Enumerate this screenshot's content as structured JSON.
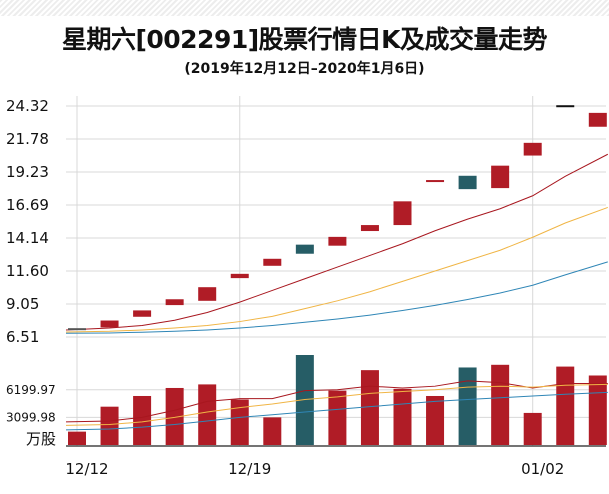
{
  "title": "星期六[002291]股票行情日K及成交量走势",
  "subtitle": "(2019年12月12日–2020年1月6日)",
  "colors": {
    "up": "#b01c26",
    "down": "#265d66",
    "ma5": "#a8171f",
    "ma10": "#f0b545",
    "ma20": "#2f86b6",
    "grid": "#d8d8d8"
  },
  "chart_data": [
    {
      "type": "candlestick",
      "y_ticks": [
        "24.32",
        "21.78",
        "19.23",
        "16.69",
        "14.14",
        "11.60",
        "9.05",
        "6.51"
      ],
      "ylim": [
        6.51,
        24.32
      ],
      "x_ticks": [
        {
          "label": "12/12",
          "index": 0
        },
        {
          "label": "12/19",
          "index": 5
        },
        {
          "label": "01/02",
          "index": 14
        }
      ],
      "candles": [
        {
          "date": "12/12",
          "open": 7.19,
          "close": 7.19,
          "high": 7.19,
          "low": 7.19
        },
        {
          "date": "12/13",
          "open": 7.25,
          "close": 7.78,
          "high": 7.78,
          "low": 7.25
        },
        {
          "date": "12/16",
          "open": 8.07,
          "close": 8.56,
          "high": 8.56,
          "low": 8.07
        },
        {
          "date": "12/17",
          "open": 8.97,
          "close": 9.42,
          "high": 9.42,
          "low": 8.97
        },
        {
          "date": "12/18",
          "open": 9.3,
          "close": 10.35,
          "high": 10.35,
          "low": 9.3
        },
        {
          "date": "12/19",
          "open": 11.05,
          "close": 11.38,
          "high": 11.38,
          "low": 11.05
        },
        {
          "date": "12/20",
          "open": 12.0,
          "close": 12.54,
          "high": 12.54,
          "low": 12.0
        },
        {
          "date": "12/23",
          "open": 13.63,
          "close": 12.93,
          "high": 13.63,
          "low": 12.93
        },
        {
          "date": "12/24",
          "open": 13.55,
          "close": 14.23,
          "high": 14.23,
          "low": 13.55
        },
        {
          "date": "12/25",
          "open": 14.68,
          "close": 15.14,
          "high": 15.14,
          "low": 14.68
        },
        {
          "date": "12/26",
          "open": 15.14,
          "close": 16.97,
          "high": 16.97,
          "low": 15.14
        },
        {
          "date": "12/27",
          "open": 18.49,
          "close": 18.61,
          "high": 18.61,
          "low": 18.49
        },
        {
          "date": "12/30",
          "open": 18.94,
          "close": 17.91,
          "high": 18.94,
          "low": 17.91
        },
        {
          "date": "12/31",
          "open": 17.99,
          "close": 19.72,
          "high": 19.72,
          "low": 17.99
        },
        {
          "date": "01/02",
          "open": 20.5,
          "close": 21.48,
          "high": 21.48,
          "low": 20.5
        },
        {
          "date": "01/03",
          "open": 24.38,
          "close": 24.38,
          "high": 24.38,
          "low": 24.38
        },
        {
          "date": "01/06",
          "open": 22.72,
          "close": 23.79,
          "high": 23.79,
          "low": 22.72
        }
      ],
      "ma": [
        {
          "values": [
            7.05,
            7.2,
            7.4,
            7.8,
            8.4,
            9.2,
            10.1,
            11.0,
            11.9,
            12.8,
            13.7,
            14.7,
            15.6,
            16.4,
            17.4,
            18.9,
            20.6
          ]
        },
        {
          "values": [
            6.9,
            6.95,
            7.05,
            7.2,
            7.4,
            7.7,
            8.1,
            8.7,
            9.3,
            10.0,
            10.8,
            11.6,
            12.4,
            13.2,
            14.2,
            15.3,
            16.5
          ]
        },
        {
          "values": [
            6.8,
            6.82,
            6.88,
            6.95,
            7.05,
            7.2,
            7.4,
            7.65,
            7.9,
            8.2,
            8.55,
            8.95,
            9.4,
            9.9,
            10.5,
            11.3,
            12.3
          ]
        }
      ]
    },
    {
      "type": "bar",
      "unit_label": "万股",
      "y_ticks": [
        "6199.97",
        "3099.98"
      ],
      "ylim": [
        0,
        10100
      ],
      "values": [
        1500,
        4300,
        5500,
        6400,
        6800,
        5100,
        3100,
        10100,
        6100,
        8400,
        6300,
        5500,
        8700,
        9000,
        3600,
        8800,
        7800
      ],
      "ma": [
        {
          "values": [
            2600,
            2700,
            3100,
            3900,
            4900,
            5200,
            5200,
            6100,
            6200,
            6600,
            6400,
            6600,
            7200,
            7000,
            6400,
            6900,
            6900
          ]
        },
        {
          "values": [
            2200,
            2300,
            2600,
            3100,
            3700,
            4200,
            4600,
            5100,
            5400,
            5800,
            6000,
            6200,
            6500,
            6600,
            6500,
            6700,
            6800
          ]
        },
        {
          "values": [
            1700,
            1800,
            2000,
            2300,
            2700,
            3100,
            3400,
            3700,
            4000,
            4300,
            4600,
            4900,
            5100,
            5300,
            5500,
            5700,
            5900
          ]
        }
      ]
    }
  ]
}
